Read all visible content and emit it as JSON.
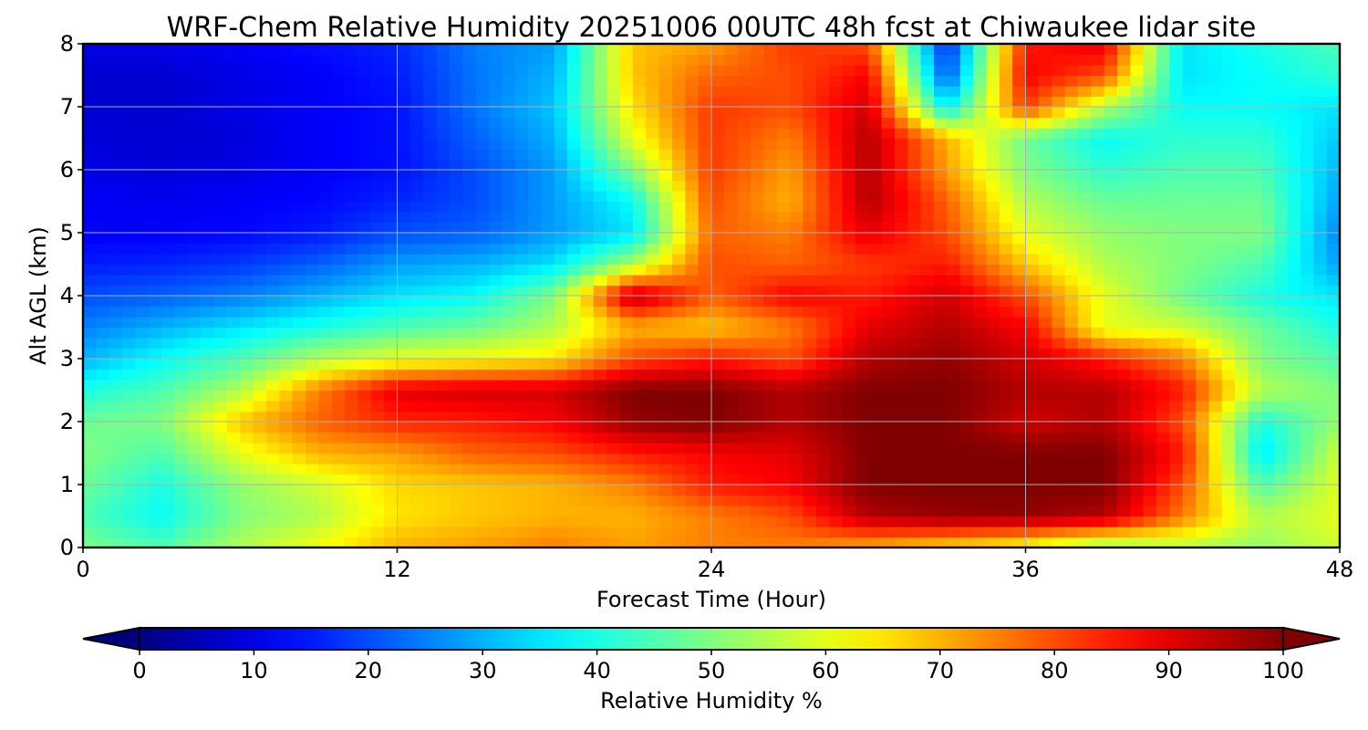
{
  "chart_data": {
    "type": "heatmap",
    "title": "WRF-Chem Relative Humidity 20251006 00UTC 48h fcst at Chiwaukee lidar site",
    "xlabel": "Forecast Time (Hour)",
    "ylabel": "Alt AGL (km)",
    "xlim": [
      0,
      48
    ],
    "ylim": [
      0,
      8
    ],
    "x_ticks": [
      0,
      12,
      24,
      36,
      48
    ],
    "y_ticks": [
      0,
      1,
      2,
      3,
      4,
      5,
      6,
      7,
      8
    ],
    "grid": true,
    "colormap": "jet",
    "colorbar": {
      "label": "Relative Humidity %",
      "range": [
        0,
        100
      ],
      "ticks": [
        0,
        10,
        20,
        30,
        40,
        50,
        60,
        70,
        80,
        90,
        100
      ],
      "extend": "both",
      "orientation": "horizontal",
      "placement": "bottom"
    },
    "x": [
      0,
      3,
      6,
      9,
      12,
      15,
      18,
      21,
      24,
      27,
      30,
      33,
      36,
      39,
      42,
      45,
      48
    ],
    "y": [
      0,
      0.5,
      1,
      1.5,
      2,
      2.5,
      3,
      3.5,
      4,
      4.5,
      5,
      5.5,
      6,
      6.5,
      7,
      7.5,
      8
    ],
    "z": [
      [
        50,
        45,
        55,
        62,
        70,
        72,
        75,
        72,
        75,
        75,
        70,
        65,
        60,
        50,
        55,
        52,
        58
      ],
      [
        45,
        38,
        50,
        55,
        65,
        68,
        70,
        70,
        75,
        80,
        95,
        98,
        98,
        95,
        75,
        55,
        60
      ],
      [
        48,
        40,
        52,
        58,
        66,
        68,
        70,
        75,
        85,
        88,
        100,
        100,
        100,
        100,
        80,
        45,
        60
      ],
      [
        50,
        45,
        60,
        70,
        72,
        78,
        80,
        85,
        88,
        90,
        100,
        100,
        100,
        100,
        85,
        35,
        58
      ],
      [
        48,
        50,
        68,
        78,
        84,
        85,
        88,
        98,
        100,
        95,
        100,
        100,
        92,
        95,
        80,
        40,
        52
      ],
      [
        40,
        45,
        55,
        75,
        90,
        92,
        92,
        100,
        100,
        95,
        100,
        100,
        95,
        95,
        85,
        55,
        50
      ],
      [
        30,
        38,
        45,
        55,
        60,
        62,
        65,
        80,
        85,
        80,
        95,
        98,
        92,
        85,
        75,
        50,
        45
      ],
      [
        25,
        30,
        35,
        40,
        45,
        48,
        55,
        70,
        68,
        75,
        90,
        95,
        88,
        60,
        58,
        48,
        40
      ],
      [
        20,
        22,
        25,
        30,
        35,
        38,
        50,
        95,
        78,
        88,
        85,
        92,
        80,
        60,
        48,
        40,
        35
      ],
      [
        15,
        16,
        18,
        22,
        28,
        30,
        35,
        55,
        80,
        78,
        82,
        85,
        68,
        55,
        50,
        45,
        28
      ],
      [
        12,
        12,
        13,
        15,
        20,
        22,
        28,
        35,
        78,
        75,
        90,
        80,
        60,
        52,
        50,
        50,
        25
      ],
      [
        12,
        11,
        12,
        13,
        16,
        20,
        28,
        38,
        80,
        70,
        95,
        78,
        55,
        48,
        48,
        48,
        28
      ],
      [
        10,
        9,
        10,
        12,
        14,
        20,
        28,
        50,
        82,
        72,
        95,
        72,
        50,
        42,
        45,
        45,
        30
      ],
      [
        9,
        8,
        9,
        12,
        14,
        22,
        30,
        60,
        82,
        75,
        95,
        70,
        48,
        38,
        42,
        42,
        32
      ],
      [
        8,
        8,
        10,
        12,
        14,
        24,
        32,
        65,
        82,
        80,
        92,
        35,
        82,
        55,
        38,
        38,
        35
      ],
      [
        8,
        8,
        10,
        12,
        15,
        24,
        30,
        68,
        78,
        80,
        88,
        20,
        88,
        80,
        35,
        38,
        42
      ],
      [
        10,
        10,
        12,
        14,
        16,
        25,
        28,
        68,
        72,
        82,
        80,
        15,
        85,
        90,
        35,
        40,
        45
      ]
    ]
  }
}
